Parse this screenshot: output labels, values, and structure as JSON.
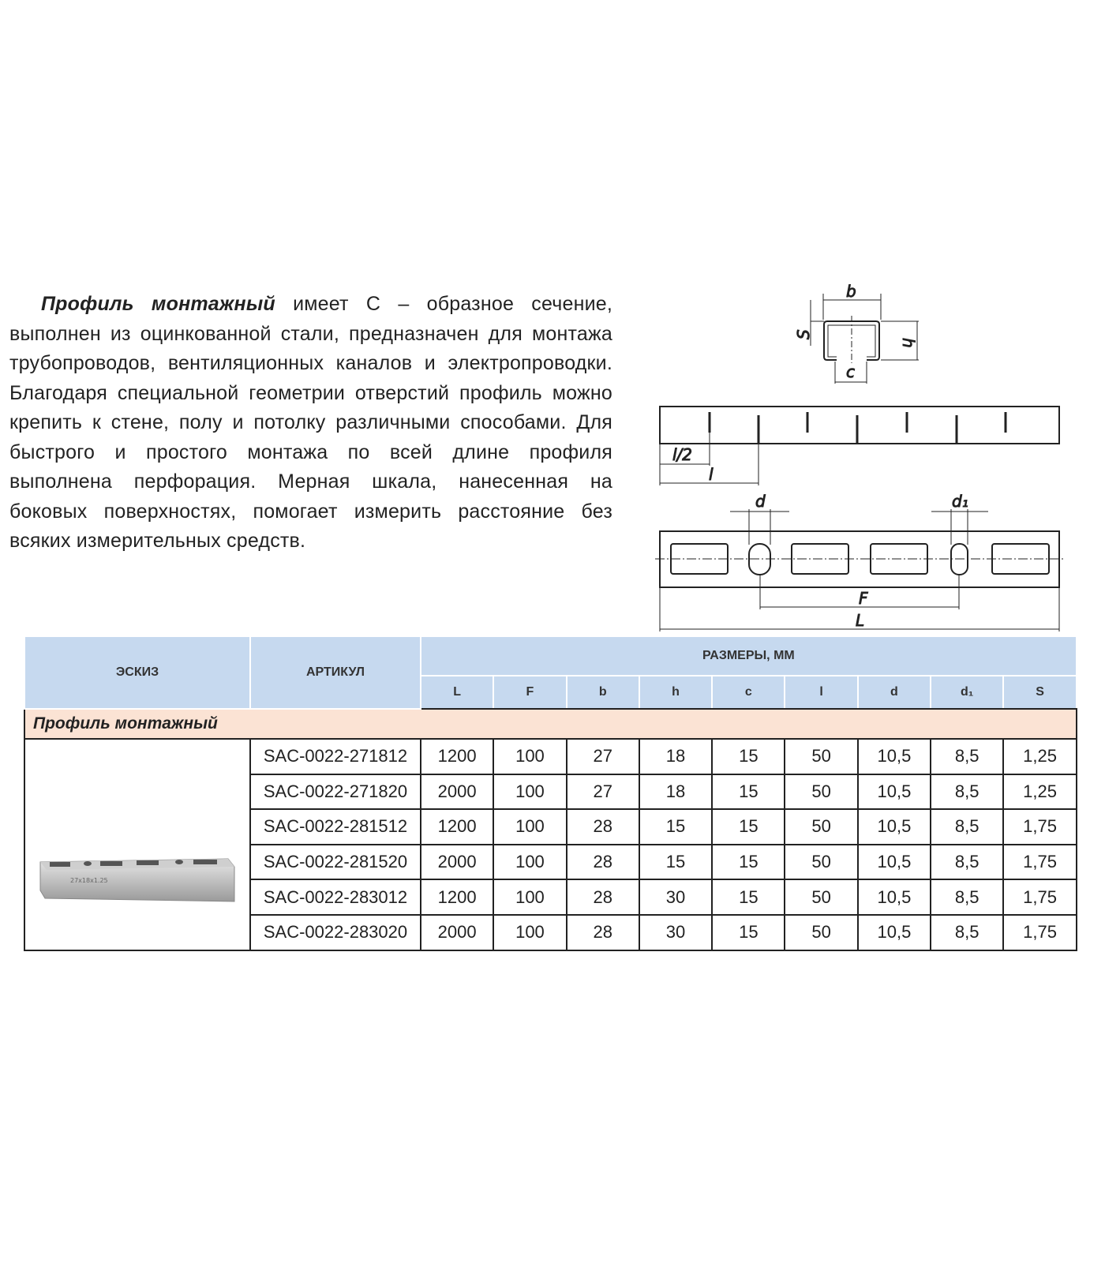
{
  "description": {
    "title": "Профиль монтажный",
    "text": " имеет С – образное сечение, выполнен из оцинкованной стали, предназначен для монтажа трубопроводов, вентиляционных каналов и электропроводки. Благодаря специальной геометрии отверстий профиль можно крепить к стене, полу и потолку различными способами. Для быстрого и простого монтажа по всей длине профиля выполнена перфорация. Мерная шкала, нанесенная на боковых поверхностях, помогает измерить расстояние без всяких измерительных средств."
  },
  "diagram": {
    "b": "b",
    "S": "S",
    "h": "h",
    "c": "c",
    "l_half": "l/2",
    "l": "l",
    "d": "d",
    "d1": "d₁",
    "F": "F",
    "L": "L"
  },
  "table": {
    "col_sketch": "ЭСКИЗ",
    "col_article": "АРТИКУЛ",
    "col_dims": "РАЗМЕРЫ, ММ",
    "dim_headers": [
      "L",
      "F",
      "b",
      "h",
      "c",
      "l",
      "d",
      "d₁",
      "S"
    ],
    "section": "Профиль монтажный",
    "image_label": "27x18x1.25",
    "rows": [
      [
        "SAC-0022-271812",
        "1200",
        "100",
        "27",
        "18",
        "15",
        "50",
        "10,5",
        "8,5",
        "1,25"
      ],
      [
        "SAC-0022-271820",
        "2000",
        "100",
        "27",
        "18",
        "15",
        "50",
        "10,5",
        "8,5",
        "1,25"
      ],
      [
        "SAC-0022-281512",
        "1200",
        "100",
        "28",
        "15",
        "15",
        "50",
        "10,5",
        "8,5",
        "1,75"
      ],
      [
        "SAC-0022-281520",
        "2000",
        "100",
        "28",
        "15",
        "15",
        "50",
        "10,5",
        "8,5",
        "1,75"
      ],
      [
        "SAC-0022-283012",
        "1200",
        "100",
        "28",
        "30",
        "15",
        "50",
        "10,5",
        "8,5",
        "1,75"
      ],
      [
        "SAC-0022-283020",
        "2000",
        "100",
        "28",
        "30",
        "15",
        "50",
        "10,5",
        "8,5",
        "1,75"
      ]
    ]
  }
}
